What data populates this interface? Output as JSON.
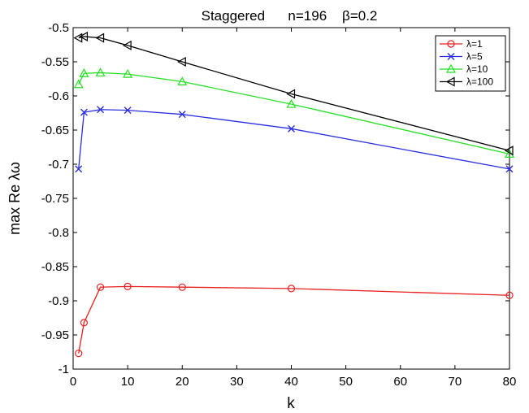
{
  "chart_data": {
    "type": "line",
    "title": "Staggered      n=196    β=0.2",
    "xlabel": "k",
    "ylabel": "max Re λω",
    "xlim": [
      0,
      80
    ],
    "ylim": [
      -1,
      -0.5
    ],
    "xticks": [
      0,
      10,
      20,
      30,
      40,
      50,
      60,
      70,
      80
    ],
    "xtick_labels": [
      "0",
      "10",
      "20",
      "30",
      "40",
      "50",
      "60",
      "70",
      "80"
    ],
    "yticks": [
      -1,
      -0.95,
      -0.9,
      -0.85,
      -0.8,
      -0.75,
      -0.7,
      -0.65,
      -0.6,
      -0.55,
      -0.5
    ],
    "ytick_labels": [
      "-1",
      "-0.95",
      "-0.9",
      "-0.85",
      "-0.8",
      "-0.75",
      "-0.7",
      "-0.65",
      "-0.6",
      "-0.55",
      "-0.5"
    ],
    "grid": false,
    "legend_position": "top-right",
    "x": [
      1,
      2,
      5,
      10,
      20,
      40,
      80
    ],
    "series": [
      {
        "name": "λ=1",
        "color": "#e8201f",
        "marker": "circle",
        "values": [
          -0.977,
          -0.932,
          -0.88,
          -0.879,
          -0.88,
          -0.882,
          -0.892
        ]
      },
      {
        "name": "λ=5",
        "color": "#2a2fe0",
        "marker": "x",
        "values": [
          -0.707,
          -0.624,
          -0.62,
          -0.621,
          -0.627,
          -0.648,
          -0.707
        ]
      },
      {
        "name": "λ=10",
        "color": "#24e024",
        "marker": "triangle-up",
        "values": [
          -0.583,
          -0.567,
          -0.566,
          -0.568,
          -0.579,
          -0.612,
          -0.685
        ]
      },
      {
        "name": "λ=100",
        "color": "#000000",
        "marker": "triangle-left",
        "values": [
          -0.515,
          -0.513,
          -0.515,
          -0.526,
          -0.55,
          -0.597,
          -0.68
        ]
      }
    ]
  }
}
